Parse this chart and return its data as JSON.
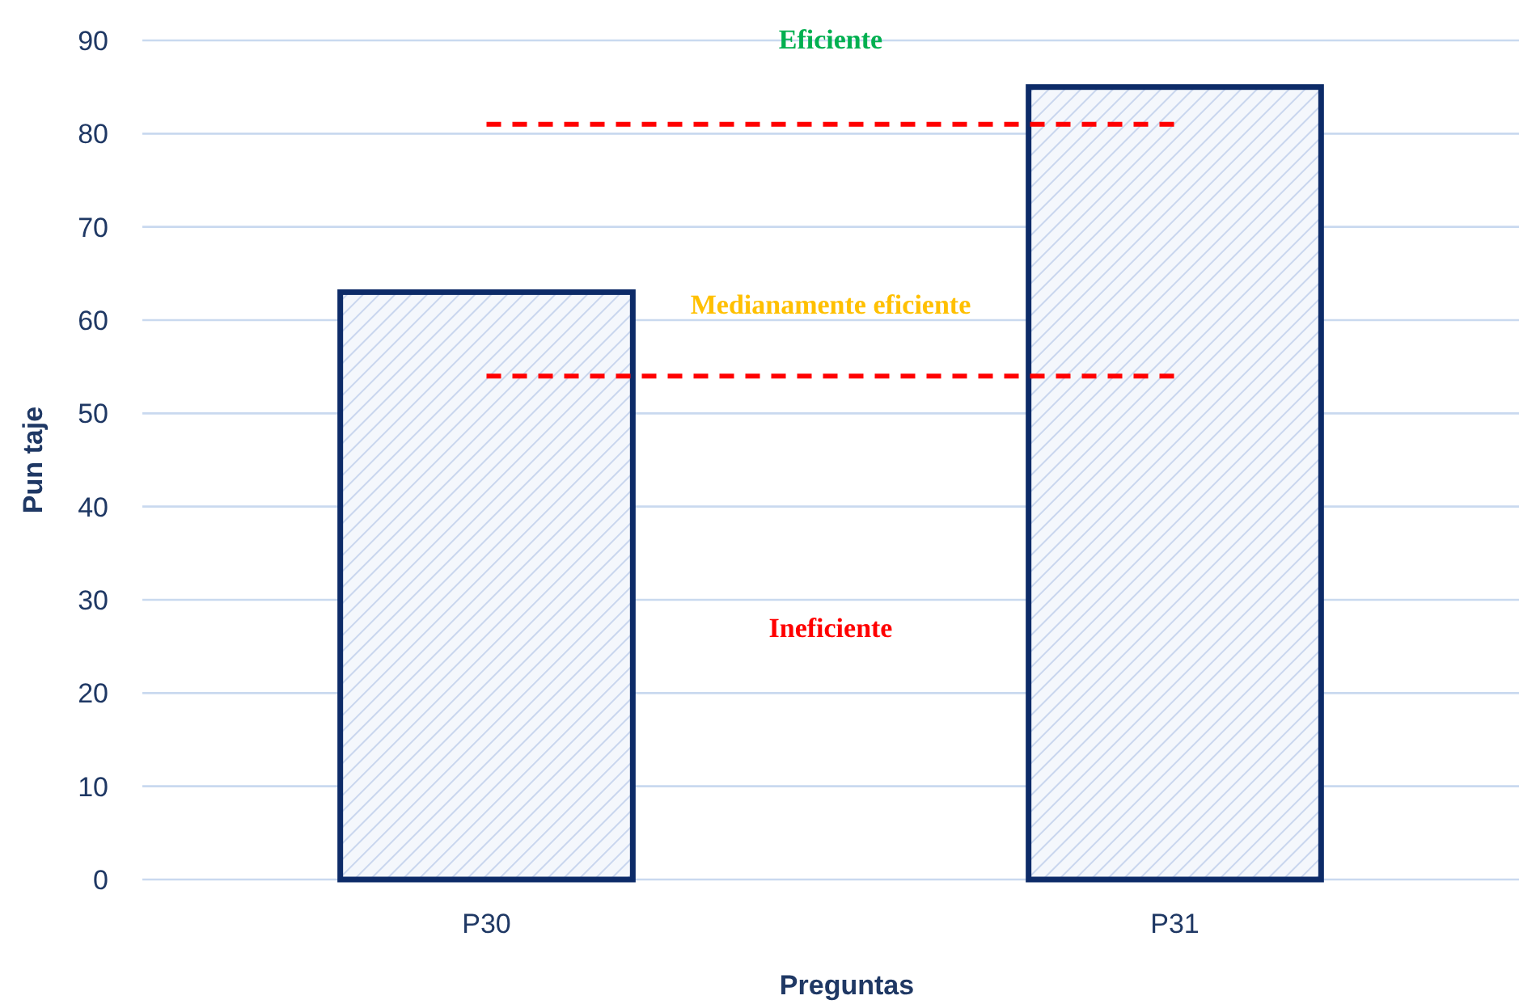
{
  "chart_data": {
    "type": "bar",
    "xlabel": "Preguntas",
    "ylabel": "Pun taje",
    "categories": [
      "P30",
      "P31"
    ],
    "values": [
      63,
      85
    ],
    "color": "#0d2b68",
    "ylim": [
      0,
      90
    ],
    "yticks": [
      0,
      10,
      20,
      30,
      40,
      50,
      60,
      70,
      80,
      90
    ],
    "grid": "y",
    "ref_lines": [
      {
        "axis": "y",
        "value": 81,
        "color": "#ff0000",
        "line_style": "dashed"
      },
      {
        "axis": "y",
        "value": 54,
        "color": "#ff0000",
        "line_style": "dashed"
      }
    ],
    "annotations": [
      "Eficiente",
      "Medianamente eficiente",
      "Ineficiente"
    ]
  }
}
